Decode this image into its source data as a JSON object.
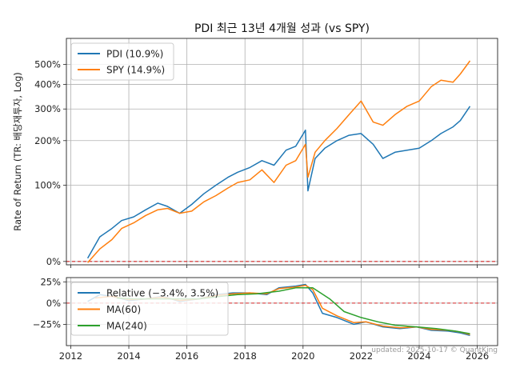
{
  "chart_data": [
    {
      "type": "line",
      "title": "PDI 최근 13년 4개월 성과 (vs SPY)",
      "ylabel": "Rate of Return (TR: 배당재투자, Log)",
      "yscale": "log(1+r)",
      "ylim": [
        -0.03,
        6.6
      ],
      "yticks": [
        {
          "v": 0,
          "label": "0%"
        },
        {
          "v": 1,
          "label": "100%"
        },
        {
          "v": 2,
          "label": "200%"
        },
        {
          "v": 3,
          "label": "300%"
        },
        {
          "v": 4,
          "label": "400%"
        },
        {
          "v": 5,
          "label": "500%"
        }
      ],
      "grid": true,
      "legend": "upper-left",
      "hline": {
        "y": 0,
        "color": "#d62728",
        "style": "dashed"
      },
      "series": [
        {
          "name": "PDI (10.9%)",
          "color": "#1f77b4",
          "x": [
            "2012-08",
            "2013-01",
            "2013-06",
            "2013-10",
            "2014-03",
            "2014-08",
            "2015-01",
            "2015-05",
            "2015-10",
            "2016-03",
            "2016-08",
            "2017-01",
            "2017-06",
            "2017-10",
            "2018-03",
            "2018-08",
            "2019-01",
            "2019-06",
            "2019-10",
            "2020-02",
            "2020-03",
            "2020-06",
            "2020-10",
            "2021-03",
            "2021-08",
            "2022-01",
            "2022-06",
            "2022-10",
            "2023-03",
            "2023-08",
            "2024-01",
            "2024-06",
            "2024-10",
            "2025-03",
            "2025-06",
            "2025-10"
          ],
          "y": [
            0.03,
            0.25,
            0.35,
            0.45,
            0.5,
            0.6,
            0.7,
            0.65,
            0.55,
            0.68,
            0.85,
            1.0,
            1.15,
            1.25,
            1.35,
            1.5,
            1.4,
            1.75,
            1.85,
            2.3,
            0.9,
            1.55,
            1.8,
            2.0,
            2.15,
            2.2,
            1.9,
            1.55,
            1.7,
            1.75,
            1.8,
            2.0,
            2.2,
            2.4,
            2.6,
            3.1
          ]
        },
        {
          "name": "SPY (14.9%)",
          "color": "#ff7f0e",
          "x": [
            "2012-08",
            "2013-01",
            "2013-06",
            "2013-10",
            "2014-03",
            "2014-08",
            "2015-01",
            "2015-05",
            "2015-10",
            "2016-03",
            "2016-08",
            "2017-01",
            "2017-06",
            "2017-10",
            "2018-03",
            "2018-08",
            "2019-01",
            "2019-06",
            "2019-10",
            "2020-02",
            "2020-03",
            "2020-06",
            "2020-10",
            "2021-03",
            "2021-08",
            "2022-01",
            "2022-06",
            "2022-10",
            "2023-03",
            "2023-08",
            "2024-01",
            "2024-06",
            "2024-10",
            "2025-03",
            "2025-06",
            "2025-10"
          ],
          "y": [
            -0.01,
            0.12,
            0.22,
            0.35,
            0.42,
            0.52,
            0.6,
            0.62,
            0.55,
            0.58,
            0.72,
            0.82,
            0.95,
            1.05,
            1.1,
            1.3,
            1.05,
            1.4,
            1.5,
            1.9,
            1.15,
            1.7,
            2.0,
            2.35,
            2.8,
            3.3,
            2.55,
            2.45,
            2.8,
            3.1,
            3.3,
            3.9,
            4.2,
            4.1,
            4.5,
            5.2
          ]
        }
      ]
    },
    {
      "type": "line",
      "ylim": [
        -0.5,
        0.3
      ],
      "yticks": [
        {
          "v": 0.25,
          "label": "25%"
        },
        {
          "v": 0,
          "label": "0%"
        },
        {
          "v": -0.25,
          "label": "−25%"
        }
      ],
      "xticks": [
        "2012",
        "2014",
        "2016",
        "2018",
        "2020",
        "2022",
        "2024",
        "2026"
      ],
      "grid": true,
      "legend": "upper-left",
      "hline": {
        "y": 0,
        "color": "#d62728",
        "style": "dashed"
      },
      "series": [
        {
          "name": "Relative (−3.4%, 3.5%)",
          "color": "#1f77b4",
          "x": [
            "2012-08",
            "2013-01",
            "2013-06",
            "2014-01",
            "2014-08",
            "2015-03",
            "2015-10",
            "2016-06",
            "2017-01",
            "2017-08",
            "2018-03",
            "2018-10",
            "2019-03",
            "2019-10",
            "2020-02",
            "2020-05",
            "2020-09",
            "2021-03",
            "2021-10",
            "2022-03",
            "2022-10",
            "2023-05",
            "2023-12",
            "2024-06",
            "2025-01",
            "2025-06",
            "2025-10"
          ],
          "y": [
            0.02,
            0.1,
            0.08,
            0.03,
            0.05,
            0.08,
            0.02,
            0.05,
            0.1,
            0.12,
            0.12,
            0.1,
            0.18,
            0.2,
            0.22,
            0.12,
            -0.12,
            -0.17,
            -0.25,
            -0.22,
            -0.28,
            -0.3,
            -0.28,
            -0.32,
            -0.33,
            -0.35,
            -0.38
          ]
        },
        {
          "name": "MA(60)",
          "color": "#ff7f0e",
          "x": [
            "2012-11",
            "2013-06",
            "2014-01",
            "2014-08",
            "2015-03",
            "2015-10",
            "2016-06",
            "2017-01",
            "2017-08",
            "2018-03",
            "2018-10",
            "2019-03",
            "2019-10",
            "2020-02",
            "2020-05",
            "2020-09",
            "2021-03",
            "2021-10",
            "2022-03",
            "2022-10",
            "2023-05",
            "2023-12",
            "2024-06",
            "2025-01",
            "2025-06",
            "2025-10"
          ],
          "y": [
            0.06,
            0.08,
            0.04,
            0.05,
            0.07,
            0.03,
            0.05,
            0.09,
            0.11,
            0.12,
            0.11,
            0.17,
            0.19,
            0.21,
            0.16,
            -0.06,
            -0.15,
            -0.23,
            -0.22,
            -0.27,
            -0.29,
            -0.28,
            -0.31,
            -0.32,
            -0.34,
            -0.37
          ]
        },
        {
          "name": "MA(240)",
          "color": "#2ca02c",
          "x": [
            "2013-08",
            "2014-03",
            "2015-01",
            "2015-10",
            "2016-06",
            "2017-03",
            "2017-10",
            "2018-06",
            "2019-03",
            "2019-10",
            "2020-05",
            "2020-12",
            "2021-06",
            "2022-01",
            "2022-08",
            "2023-03",
            "2023-12",
            "2024-08",
            "2025-04",
            "2025-10"
          ],
          "y": [
            0.06,
            0.05,
            0.05,
            0.05,
            0.05,
            0.08,
            0.1,
            0.11,
            0.14,
            0.18,
            0.18,
            0.05,
            -0.1,
            -0.17,
            -0.22,
            -0.26,
            -0.28,
            -0.3,
            -0.33,
            -0.36
          ]
        }
      ]
    }
  ],
  "footer": "updated: 2025-10-17 © QuantKing"
}
